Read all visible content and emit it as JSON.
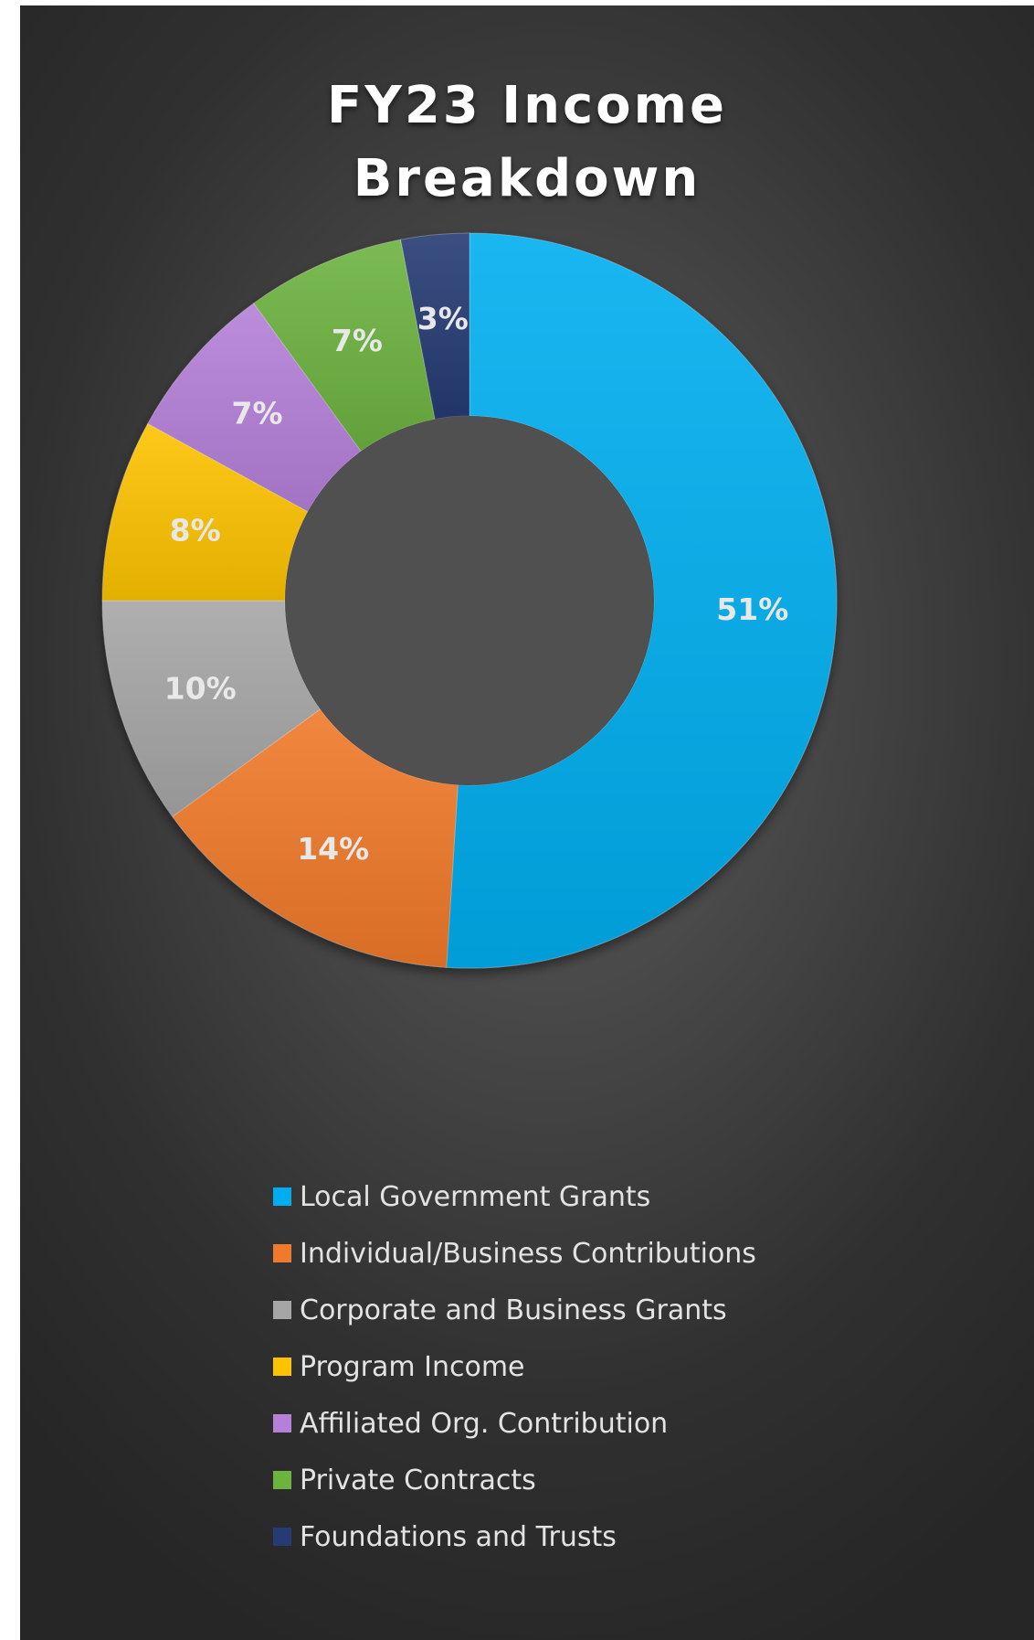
{
  "chart_data": {
    "type": "donut",
    "title_lines": [
      "FY23 Income",
      "Breakdown"
    ],
    "unit": "%",
    "legend_position": "bottom",
    "slices": [
      {
        "label": "Local Government Grants",
        "value": 51,
        "display": "51%",
        "color": "#00aeef"
      },
      {
        "label": "Individual/Business Contributions",
        "value": 14,
        "display": "14%",
        "color": "#f07a2c"
      },
      {
        "label": "Corporate and Business Grants",
        "value": 10,
        "display": "10%",
        "color": "#a6a6a6"
      },
      {
        "label": "Program Income",
        "value": 8,
        "display": "8%",
        "color": "#fdc300"
      },
      {
        "label": "Affiliated Org. Contribution",
        "value": 7,
        "display": "7%",
        "color": "#b580d9"
      },
      {
        "label": "Private Contracts",
        "value": 7,
        "display": "7%",
        "color": "#6db33f"
      },
      {
        "label": "Foundations and Trusts",
        "value": 3,
        "display": "3%",
        "color": "#263b73"
      }
    ]
  }
}
